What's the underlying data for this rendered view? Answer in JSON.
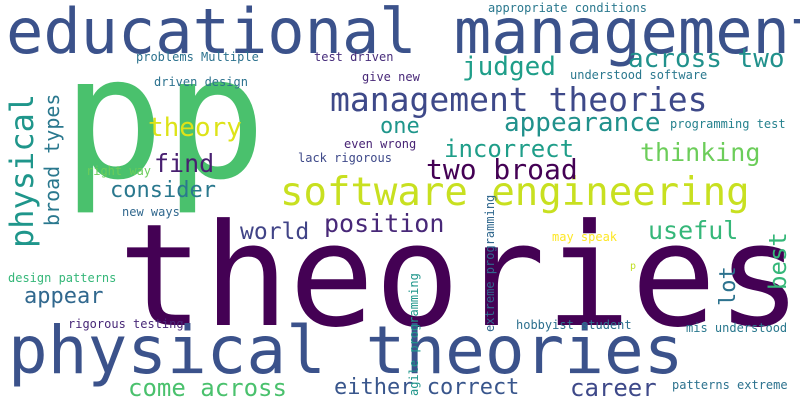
{
  "words": [
    {
      "text": "theories",
      "color": "#440154"
    },
    {
      "text": "p",
      "color": "#4ac16d"
    },
    {
      "text": "p",
      "color": "#4ac16d"
    },
    {
      "text": "educational management",
      "color": "#3b528b"
    },
    {
      "text": "physical theories",
      "color": "#3b528b"
    },
    {
      "text": "software engineering",
      "color": "#c8e020"
    },
    {
      "text": "management theories",
      "color": "#3e4989"
    },
    {
      "text": "physical",
      "color": "#1f968b"
    },
    {
      "text": "two broad",
      "color": "#440154"
    },
    {
      "text": "judged",
      "color": "#1f9e89"
    },
    {
      "text": "across two",
      "color": "#21918c"
    },
    {
      "text": "appearance",
      "color": "#21918c"
    },
    {
      "text": "theory",
      "color": "#dde318"
    },
    {
      "text": "one",
      "color": "#1f968b"
    },
    {
      "text": "incorrect",
      "color": "#1f9e89"
    },
    {
      "text": "thinking",
      "color": "#6ccd5a"
    },
    {
      "text": "find",
      "color": "#481f70"
    },
    {
      "text": "consider",
      "color": "#2a788e"
    },
    {
      "text": "broad types",
      "color": "#2a788e"
    },
    {
      "text": "position",
      "color": "#482878"
    },
    {
      "text": "world",
      "color": "#414487"
    },
    {
      "text": "useful",
      "color": "#35b779"
    },
    {
      "text": "best",
      "color": "#35b779"
    },
    {
      "text": "lot",
      "color": "#2c728e"
    },
    {
      "text": "appear",
      "color": "#31688e"
    },
    {
      "text": "come across",
      "color": "#4ac16d"
    },
    {
      "text": "either correct",
      "color": "#39568c"
    },
    {
      "text": "career",
      "color": "#3e4989"
    },
    {
      "text": "appropriate conditions",
      "color": "#2a788e"
    },
    {
      "text": "problems Multiple",
      "color": "#2c728e"
    },
    {
      "text": "test driven",
      "color": "#472d7b"
    },
    {
      "text": "give new",
      "color": "#482878"
    },
    {
      "text": "understood software",
      "color": "#2a788e"
    },
    {
      "text": "driven design",
      "color": "#2c728e"
    },
    {
      "text": "programming test",
      "color": "#26828e"
    },
    {
      "text": "even wrong",
      "color": "#482475"
    },
    {
      "text": "lack rigorous",
      "color": "#3e4989"
    },
    {
      "text": "right way",
      "color": "#6ccd5a"
    },
    {
      "text": "new ways",
      "color": "#31688e"
    },
    {
      "text": "extreme programming",
      "color": "#31688e"
    },
    {
      "text": "may speak",
      "color": "#fde725"
    },
    {
      "text": "design patterns",
      "color": "#35b779"
    },
    {
      "text": "p",
      "color": "#c0df25"
    },
    {
      "text": "agile programming",
      "color": "#1f968b"
    },
    {
      "text": "rigorous testing",
      "color": "#482878"
    },
    {
      "text": "hobbyist student",
      "color": "#2d708e"
    },
    {
      "text": "mis understood",
      "color": "#2a788e"
    },
    {
      "text": "patterns extreme",
      "color": "#2c728e"
    }
  ]
}
